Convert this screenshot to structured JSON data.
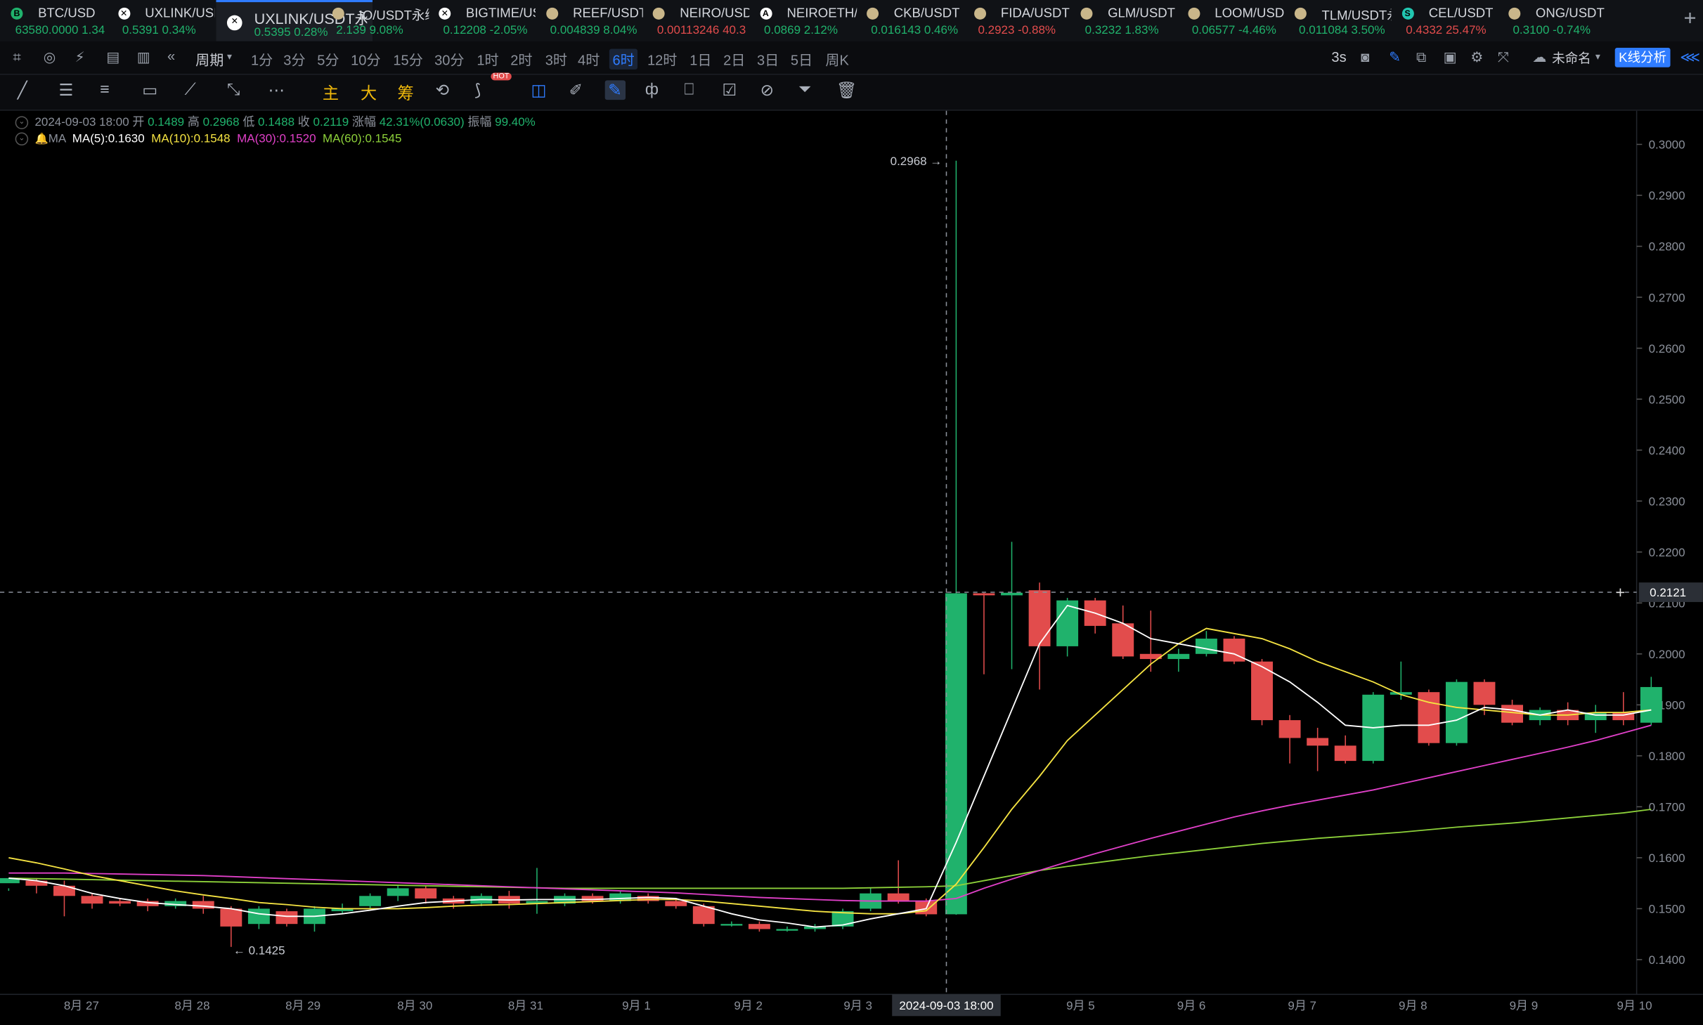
{
  "tickers": [
    {
      "symbol": "BTC/USD",
      "price": "63580.0000",
      "change": "1.34",
      "dir": "up",
      "coin_color": "#20b26c",
      "coin_glyph": "B"
    },
    {
      "symbol": "UXLINK/USI",
      "price": "0.5391",
      "change": "0.34%",
      "dir": "up",
      "coin_color": "#ffffff",
      "coin_glyph": "✕"
    },
    {
      "symbol": "UXLINK/USDT永续",
      "price": "0.5395",
      "change": "0.28%",
      "dir": "up",
      "coin_color": "#ffffff",
      "coin_glyph": "✕",
      "active": true
    },
    {
      "symbol": "IO/USDT永续",
      "price": "2.139",
      "change": "9.08%",
      "dir": "up",
      "coin_color": "#c9b68a",
      "coin_glyph": ""
    },
    {
      "symbol": "BIGTIME/US",
      "price": "0.12208",
      "change": "-2.05%",
      "dir": "up",
      "coin_color": "#ffffff",
      "coin_glyph": "✕"
    },
    {
      "symbol": "REEF/USDT",
      "price": "0.004839",
      "change": "8.04%",
      "dir": "up",
      "coin_color": "#c9b68a",
      "coin_glyph": ""
    },
    {
      "symbol": "NEIRO/USD",
      "price": "0.00113246",
      "change": "40.3",
      "dir": "dn",
      "coin_color": "#c9b68a",
      "coin_glyph": ""
    },
    {
      "symbol": "NEIROETH/",
      "price": "0.0869",
      "change": "2.12%",
      "dir": "up",
      "coin_color": "#ffffff",
      "coin_glyph": "A"
    },
    {
      "symbol": "CKB/USDT",
      "price": "0.016143",
      "change": "0.46%",
      "dir": "up",
      "coin_color": "#c9b68a",
      "coin_glyph": ""
    },
    {
      "symbol": "FIDA/USDT",
      "price": "0.2923",
      "change": "-0.88%",
      "dir": "dn",
      "coin_color": "#c9b68a",
      "coin_glyph": ""
    },
    {
      "symbol": "GLM/USDT",
      "price": "0.3232",
      "change": "1.83%",
      "dir": "up",
      "coin_color": "#c9b68a",
      "coin_glyph": ""
    },
    {
      "symbol": "LOOM/USD",
      "price": "0.06577",
      "change": "-4.46%",
      "dir": "up",
      "coin_color": "#c9b68a",
      "coin_glyph": ""
    },
    {
      "symbol": "TLM/USDT永",
      "price": "0.011084",
      "change": "3.50%",
      "dir": "up",
      "coin_color": "#c9b68a",
      "coin_glyph": ""
    },
    {
      "symbol": "CEL/USDT",
      "price": "0.4332",
      "change": "25.47%",
      "dir": "dn",
      "coin_color": "#21c6b0",
      "coin_glyph": "S"
    },
    {
      "symbol": "ONG/USDT",
      "price": "0.3100",
      "change": "-0.74%",
      "dir": "up",
      "coin_color": "#c9b68a",
      "coin_glyph": ""
    }
  ],
  "period_bar": {
    "cycle_label": "周期",
    "periods": [
      "1分",
      "3分",
      "5分",
      "10分",
      "15分",
      "30分",
      "1时",
      "2时",
      "3时",
      "4时",
      "6时",
      "12时",
      "1日",
      "2日",
      "3日",
      "5日",
      "周K"
    ],
    "selected": "6时",
    "countdown": "3s",
    "layout_name": "未命名",
    "analysis_button": "K线分析"
  },
  "drawing_bar": {
    "main": "主",
    "big": "大",
    "chip": "筹",
    "hot_badge": "HOT"
  },
  "ohlc": {
    "time": "2024-09-03 18:00",
    "open_label": "开",
    "open": "0.1489",
    "high_label": "高",
    "high": "0.2968",
    "low_label": "低",
    "low": "0.1488",
    "close_label": "收",
    "close": "0.2119",
    "change_label": "涨幅",
    "change": "42.31%(0.0630)",
    "amp_label": "振幅",
    "amp": "99.40%"
  },
  "ma": {
    "label": "MA",
    "ma5": "MA(5):0.1630",
    "ma10": "MA(10):0.1548",
    "ma30": "MA(30):0.1520",
    "ma60": "MA(60):0.1545",
    "colors": {
      "ma5": "#ffffff",
      "ma10": "#f5e342",
      "ma30": "#e040c8",
      "ma60": "#8dd13a"
    }
  },
  "chart_data": {
    "type": "candlestick",
    "up_color": "#20b26c",
    "down_color": "#e24c4c",
    "y_ticks": [
      "0.3000",
      "0.2900",
      "0.2800",
      "0.2700",
      "0.2600",
      "0.2500",
      "0.2400",
      "0.2300",
      "0.2200",
      "0.2100",
      "0.2000",
      "0.1900",
      "0.1800",
      "0.1700",
      "0.1600",
      "0.1500",
      "0.1400"
    ],
    "x_labels": [
      "8月 27",
      "8月 28",
      "8月 29",
      "8月 30",
      "8月 31",
      "9月 1",
      "9月 2",
      "9月 3",
      "9月 5",
      "9月 6",
      "9月 7",
      "9月 8",
      "9月 9",
      "9月 10"
    ],
    "crosshair_time": "2024-09-03 18:00",
    "crosshair_price": "0.2121",
    "high_marker": "0.2968",
    "low_marker": "0.1425",
    "candles": [
      [
        0.155,
        0.156,
        0.154,
        0.1535
      ],
      [
        0.1555,
        0.1545,
        0.156,
        0.153
      ],
      [
        0.1545,
        0.1525,
        0.1555,
        0.1485
      ],
      [
        0.1525,
        0.151,
        0.153,
        0.15
      ],
      [
        0.1515,
        0.151,
        0.152,
        0.1505
      ],
      [
        0.1515,
        0.1505,
        0.152,
        0.1495
      ],
      [
        0.1505,
        0.1515,
        0.152,
        0.15
      ],
      [
        0.1515,
        0.15,
        0.1525,
        0.149
      ],
      [
        0.15,
        0.1465,
        0.1505,
        0.1425
      ],
      [
        0.147,
        0.15,
        0.1505,
        0.146
      ],
      [
        0.1495,
        0.147,
        0.15,
        0.1465
      ],
      [
        0.147,
        0.15,
        0.1505,
        0.1455
      ],
      [
        0.1495,
        0.15,
        0.151,
        0.149
      ],
      [
        0.1505,
        0.1525,
        0.153,
        0.15
      ],
      [
        0.1525,
        0.154,
        0.1545,
        0.1515
      ],
      [
        0.154,
        0.152,
        0.1545,
        0.151
      ],
      [
        0.152,
        0.151,
        0.1525,
        0.15
      ],
      [
        0.151,
        0.1525,
        0.153,
        0.1505
      ],
      [
        0.1525,
        0.151,
        0.1535,
        0.15
      ],
      [
        0.151,
        0.1515,
        0.158,
        0.149
      ],
      [
        0.151,
        0.1525,
        0.153,
        0.1505
      ],
      [
        0.1525,
        0.1515,
        0.153,
        0.151
      ],
      [
        0.1515,
        0.153,
        0.1535,
        0.151
      ],
      [
        0.1525,
        0.1515,
        0.153,
        0.151
      ],
      [
        0.1515,
        0.1505,
        0.152,
        0.15
      ],
      [
        0.1505,
        0.147,
        0.151,
        0.1465
      ],
      [
        0.147,
        0.147,
        0.1475,
        0.1465
      ],
      [
        0.147,
        0.146,
        0.1475,
        0.1455
      ],
      [
        0.146,
        0.146,
        0.1465,
        0.1455
      ],
      [
        0.146,
        0.1465,
        0.147,
        0.1455
      ],
      [
        0.1465,
        0.1495,
        0.15,
        0.146
      ],
      [
        0.15,
        0.153,
        0.154,
        0.1495
      ],
      [
        0.153,
        0.1515,
        0.1595,
        0.151
      ],
      [
        0.1515,
        0.1489,
        0.152,
        0.1485
      ],
      [
        0.1489,
        0.2119,
        0.2968,
        0.1488
      ],
      [
        0.2119,
        0.2115,
        0.212,
        0.196
      ],
      [
        0.2115,
        0.212,
        0.222,
        0.197
      ],
      [
        0.2125,
        0.2015,
        0.214,
        0.193
      ],
      [
        0.2015,
        0.2105,
        0.211,
        0.1995
      ],
      [
        0.2105,
        0.2055,
        0.211,
        0.204
      ],
      [
        0.206,
        0.1995,
        0.2095,
        0.199
      ],
      [
        0.2,
        0.199,
        0.2085,
        0.1965
      ],
      [
        0.199,
        0.2,
        0.201,
        0.1965
      ],
      [
        0.2,
        0.203,
        0.2045,
        0.1995
      ],
      [
        0.203,
        0.1985,
        0.2035,
        0.198
      ],
      [
        0.1985,
        0.187,
        0.199,
        0.186
      ],
      [
        0.187,
        0.1835,
        0.188,
        0.1785
      ],
      [
        0.1835,
        0.182,
        0.1855,
        0.177
      ],
      [
        0.182,
        0.179,
        0.184,
        0.1785
      ],
      [
        0.179,
        0.192,
        0.1925,
        0.1785
      ],
      [
        0.192,
        0.1925,
        0.1985,
        0.191
      ],
      [
        0.1925,
        0.1825,
        0.193,
        0.182
      ],
      [
        0.1825,
        0.1945,
        0.195,
        0.182
      ],
      [
        0.1945,
        0.19,
        0.195,
        0.188
      ],
      [
        0.19,
        0.1865,
        0.191,
        0.186
      ],
      [
        0.187,
        0.189,
        0.1895,
        0.186
      ],
      [
        0.189,
        0.187,
        0.1905,
        0.186
      ],
      [
        0.187,
        0.1885,
        0.19,
        0.1845
      ],
      [
        0.1885,
        0.187,
        0.1925,
        0.186
      ],
      [
        0.1865,
        0.1935,
        0.1955,
        0.186
      ]
    ],
    "ma5": [
      0.156,
      0.1555,
      0.1545,
      0.153,
      0.152,
      0.1512,
      0.1508,
      0.1505,
      0.15,
      0.149,
      0.1485,
      0.1485,
      0.149,
      0.1497,
      0.1505,
      0.1512,
      0.1515,
      0.1518,
      0.1517,
      0.1518,
      0.1518,
      0.1518,
      0.152,
      0.1522,
      0.152,
      0.1505,
      0.149,
      0.1478,
      0.1472,
      0.1464,
      0.1468,
      0.148,
      0.149,
      0.15,
      0.163,
      0.176,
      0.189,
      0.202,
      0.2095,
      0.208,
      0.206,
      0.203,
      0.202,
      0.201,
      0.2,
      0.1975,
      0.1945,
      0.1905,
      0.186,
      0.1855,
      0.186,
      0.186,
      0.187,
      0.1895,
      0.189,
      0.188,
      0.189,
      0.188,
      0.188,
      0.189
    ],
    "ma10": [
      0.16,
      0.159,
      0.1578,
      0.1565,
      0.1555,
      0.1545,
      0.1535,
      0.1527,
      0.152,
      0.1512,
      0.1508,
      0.1503,
      0.15,
      0.15,
      0.15,
      0.1502,
      0.1505,
      0.1507,
      0.1508,
      0.151,
      0.1512,
      0.1514,
      0.1516,
      0.1518,
      0.1518,
      0.1515,
      0.151,
      0.1505,
      0.15,
      0.1495,
      0.1492,
      0.149,
      0.149,
      0.1496,
      0.1548,
      0.162,
      0.1695,
      0.176,
      0.183,
      0.188,
      0.193,
      0.198,
      0.202,
      0.205,
      0.204,
      0.203,
      0.201,
      0.1985,
      0.1965,
      0.1945,
      0.192,
      0.1905,
      0.1895,
      0.189,
      0.1885,
      0.188,
      0.188,
      0.1885,
      0.1885,
      0.189
    ],
    "ma30": [
      0.157,
      0.157,
      0.157,
      0.1569,
      0.1568,
      0.1567,
      0.1566,
      0.1565,
      0.1563,
      0.1561,
      0.1559,
      0.1557,
      0.1555,
      0.1553,
      0.1551,
      0.1549,
      0.1547,
      0.1545,
      0.1543,
      0.1541,
      0.1539,
      0.1537,
      0.1535,
      0.1533,
      0.1531,
      0.1528,
      0.1525,
      0.1522,
      0.152,
      0.1518,
      0.1516,
      0.1515,
      0.1515,
      0.1515,
      0.152,
      0.154,
      0.1558,
      0.1575,
      0.1592,
      0.1608,
      0.1623,
      0.1638,
      0.1652,
      0.1666,
      0.168,
      0.1692,
      0.1703,
      0.1713,
      0.1723,
      0.1733,
      0.1745,
      0.1757,
      0.1769,
      0.1781,
      0.1793,
      0.1805,
      0.1817,
      0.183,
      0.1845,
      0.186
    ],
    "ma60": [
      0.156,
      0.1559,
      0.1558,
      0.1557,
      0.1556,
      0.1555,
      0.1554,
      0.1553,
      0.1552,
      0.1551,
      0.155,
      0.1549,
      0.1548,
      0.1547,
      0.1546,
      0.1545,
      0.1544,
      0.1543,
      0.1542,
      0.1541,
      0.154,
      0.154,
      0.154,
      0.154,
      0.154,
      0.154,
      0.154,
      0.154,
      0.154,
      0.154,
      0.154,
      0.1541,
      0.1542,
      0.1543,
      0.1545,
      0.1555,
      0.1565,
      0.1575,
      0.1583,
      0.159,
      0.1597,
      0.1604,
      0.161,
      0.1616,
      0.1622,
      0.1628,
      0.1633,
      0.1638,
      0.1642,
      0.1646,
      0.165,
      0.1655,
      0.166,
      0.1664,
      0.1668,
      0.1673,
      0.1678,
      0.1683,
      0.1688,
      0.1695
    ]
  }
}
